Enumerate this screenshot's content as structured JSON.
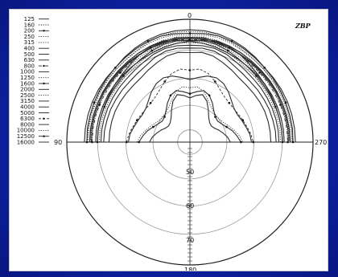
{
  "chart_data": {
    "type": "polar",
    "logo_text": "ZBP",
    "angle_labels": [
      "0",
      "90",
      "180",
      "270"
    ],
    "radial_labels": [
      "50",
      "60",
      "70"
    ],
    "legend": {
      "placement": "top-left",
      "entries": [
        "125",
        "160",
        "200",
        "250",
        "315",
        "400",
        "500",
        "630",
        "800",
        "1000",
        "1250",
        "1600",
        "2000",
        "2500",
        "3150",
        "4000",
        "5000",
        "6300",
        "8000",
        "10000",
        "12500",
        "16000"
      ]
    },
    "r_min": 40,
    "r_max": 75,
    "series": [
      {
        "name": "125",
        "style": "solid",
        "marker": false,
        "r": [
          72,
          72,
          71.8,
          71.5,
          71,
          70.5,
          70,
          70,
          70,
          70,
          70,
          70,
          70
        ]
      },
      {
        "name": "160",
        "style": "dotted",
        "marker": false,
        "r": [
          71.5,
          71.6,
          71.3,
          70.8,
          70.2,
          69.8,
          69.5,
          69.5,
          69.4,
          69.3,
          69.3,
          69.2,
          69.2
        ]
      },
      {
        "name": "200",
        "style": "solid",
        "marker": true,
        "r": [
          71,
          71.2,
          71.3,
          71.1,
          70.7,
          70.3,
          70,
          69.8,
          69.6,
          69.5,
          69.4,
          69.4,
          69.3
        ]
      },
      {
        "name": "250",
        "style": "dotted",
        "marker": false,
        "r": [
          70.5,
          70.8,
          70.8,
          70.5,
          70,
          69.7,
          69.5,
          69.3,
          69.2,
          69,
          69,
          69,
          69
        ]
      },
      {
        "name": "315",
        "style": "dotted",
        "marker": false,
        "r": [
          70,
          70.2,
          70,
          69.6,
          69.2,
          68.8,
          68.6,
          68.5,
          68.4,
          68.4,
          68.3,
          68.3,
          68.3
        ]
      },
      {
        "name": "400",
        "style": "solid",
        "marker": false,
        "r": [
          69.8,
          70,
          69.5,
          69,
          68.7,
          68.5,
          68.3,
          68.2,
          68.2,
          68.1,
          68.1,
          68.1,
          68
        ]
      },
      {
        "name": "500",
        "style": "solid",
        "marker": false,
        "r": [
          69.5,
          69.7,
          69.8,
          69.6,
          69.3,
          69,
          68.8,
          68.7,
          68.6,
          68.5,
          68.5,
          68.5,
          68.5
        ]
      },
      {
        "name": "630",
        "style": "solid",
        "marker": false,
        "r": [
          69.6,
          69.5,
          69.2,
          69,
          68.8,
          68.7,
          68.6,
          68.5,
          68.5,
          68.5,
          68.5,
          68.5,
          68.5
        ]
      },
      {
        "name": "800",
        "style": "dashdot",
        "marker": true,
        "r": [
          69.2,
          69.4,
          69.4,
          69.1,
          68.6,
          68.2,
          68,
          67.9,
          67.8,
          67.8,
          67.8,
          67.8,
          67.8
        ]
      },
      {
        "name": "1000",
        "style": "solid",
        "marker": false,
        "r": [
          68.7,
          68.4,
          68,
          67.6,
          67.3,
          67.1,
          67,
          66.9,
          66.9,
          66.8,
          66.8,
          66.8,
          66.8
        ]
      },
      {
        "name": "1250",
        "style": "dotted",
        "marker": false,
        "r": [
          68.8,
          69,
          69,
          68.6,
          68.1,
          67.6,
          67.2,
          67,
          66.9,
          66.9,
          66.8,
          66.8,
          66.8
        ]
      },
      {
        "name": "1600",
        "style": "solid",
        "marker": true,
        "r": [
          69,
          69.1,
          68.8,
          68.2,
          67.5,
          67,
          66.7,
          66.5,
          66.4,
          66.3,
          66.3,
          66.3,
          66.3
        ]
      },
      {
        "name": "2000",
        "style": "solid",
        "marker": false,
        "r": [
          68.8,
          69.2,
          69.6,
          69.4,
          68.7,
          67.9,
          67.3,
          66.9,
          66.6,
          66.4,
          66.3,
          66.3,
          66.3
        ]
      },
      {
        "name": "2500",
        "style": "dotted",
        "marker": false,
        "r": [
          68.3,
          68.5,
          68.3,
          67.7,
          67,
          66.5,
          66.2,
          66,
          65.9,
          65.8,
          65.8,
          65.8,
          65.8
        ]
      },
      {
        "name": "3150",
        "style": "solid",
        "marker": false,
        "r": [
          67.6,
          67.7,
          67.6,
          67.1,
          66.3,
          65.8,
          65.5,
          65.4,
          65.3,
          65.3,
          65.3,
          65.3,
          65.3
        ]
      },
      {
        "name": "4000",
        "style": "solid",
        "marker": false,
        "r": [
          66.8,
          67,
          66.8,
          66.1,
          65.1,
          64.6,
          64.3,
          64.3,
          64.3,
          64.4,
          64.4,
          64.5,
          64.5
        ]
      },
      {
        "name": "5000",
        "style": "solid",
        "marker": false,
        "r": [
          65.5,
          65.8,
          65.4,
          64.5,
          63.7,
          63,
          62.8,
          62.8,
          62.9,
          63,
          63,
          63,
          63
        ]
      },
      {
        "name": "6300",
        "style": "dashed",
        "marker": true,
        "r": [
          60.5,
          61,
          60.2,
          58.7,
          57.2,
          56.2,
          55.8,
          55.7,
          55.9,
          56.3,
          56.8,
          57.5,
          58
        ]
      },
      {
        "name": "8000",
        "style": "solid",
        "marker": false,
        "r": [
          57.8,
          58.6,
          59.5,
          59.8,
          59.2,
          58,
          56.7,
          55.8,
          55.6,
          56,
          56.5,
          57.2,
          57.5
        ]
      },
      {
        "name": "10000",
        "style": "dotted",
        "marker": false,
        "r": [
          55.5,
          55.9,
          55,
          53.2,
          51.8,
          51,
          50.6,
          50.6,
          51.1,
          52,
          53,
          54.2,
          55
        ]
      },
      {
        "name": "12500",
        "style": "solid",
        "marker": true,
        "r": [
          53.8,
          54.5,
          55.2,
          54.4,
          52.8,
          51.2,
          50.2,
          49.9,
          50.4,
          51.3,
          52.5,
          53.5,
          54.5
        ]
      },
      {
        "name": "16000",
        "style": "solid",
        "marker": false,
        "r": [
          52.6,
          53.4,
          54,
          52.6,
          50.5,
          48.8,
          47.9,
          47.6,
          48,
          48.9,
          49.8,
          50.8,
          51.5
        ]
      }
    ],
    "angles_deg": [
      0,
      15,
      30,
      45,
      60,
      75,
      90,
      105,
      120,
      135,
      150,
      165,
      180
    ]
  }
}
